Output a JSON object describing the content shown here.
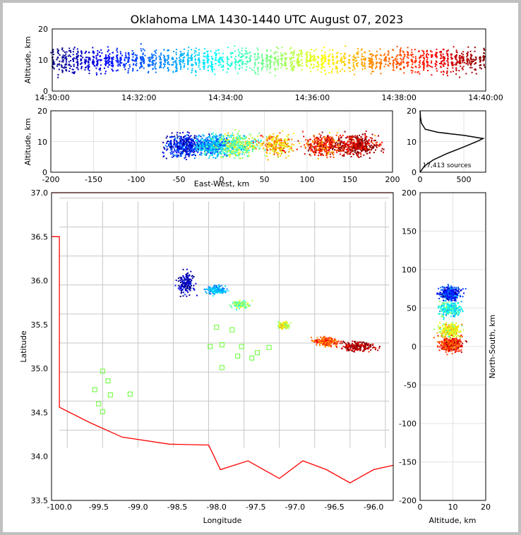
{
  "title": "Oklahoma LMA 1430-1440 UTC August 07, 2023",
  "time_panel": {
    "ylabel": "Altitude, km",
    "yticks": [
      "0",
      "10",
      "20"
    ],
    "xticks": [
      "14:30:00",
      "14:32:00",
      "14:34:00",
      "14:36:00",
      "14:38:00",
      "14:40:00"
    ]
  },
  "ew_panel": {
    "xlabel": "East-West, km",
    "ylabel": "Altitude, km",
    "xticks": [
      "-200",
      "-150",
      "-100",
      "-50",
      "0",
      "50",
      "100",
      "150",
      "200"
    ],
    "yticks": [
      "0",
      "10",
      "20"
    ]
  },
  "hist_panel": {
    "annotation": "17,413 sources",
    "xticks": [
      "0",
      "500"
    ],
    "yticks": [
      "0",
      "10",
      "20"
    ]
  },
  "map_panel": {
    "xlabel": "Longitude",
    "ylabel": "Latitude",
    "xticks": [
      "-100.0",
      "-99.5",
      "-99.0",
      "-98.5",
      "-98.0",
      "-97.5",
      "-97.0",
      "-96.5",
      "-96.0"
    ],
    "yticks": [
      "33.5",
      "34.0",
      "34.5",
      "35.0",
      "35.5",
      "36.0",
      "36.5",
      "37.0"
    ]
  },
  "ns_panel": {
    "xlabel": "Altitude, km",
    "ylabel": "North-South, km",
    "xticks": [
      "0",
      "10",
      "20"
    ],
    "yticks": [
      "-200",
      "-150",
      "-100",
      "-50",
      "0",
      "50",
      "100",
      "150",
      "200"
    ]
  },
  "colors": {
    "border": "#ff0000",
    "counties": "#bdbdbd",
    "stations": "#66ff33"
  },
  "chart_data": [
    {
      "type": "scatter",
      "name": "altitude-vs-time",
      "x_range": [
        "14:30:00",
        "14:40:00"
      ],
      "ylim": [
        0,
        20
      ],
      "colormap": "jet (time)",
      "altitude_band_km": [
        2,
        18
      ]
    },
    {
      "type": "scatter",
      "name": "altitude-vs-east-west",
      "xlim": [
        -200,
        200
      ],
      "ylim": [
        0,
        20
      ],
      "x_extent_km": [
        -60,
        200
      ]
    },
    {
      "type": "area",
      "name": "altitude-histogram",
      "xlim": [
        0,
        750
      ],
      "ylim": [
        0,
        20
      ],
      "total_sources": 17413,
      "peak_altitude_km": 11,
      "peak_count": 720,
      "profile": [
        [
          0,
          0
        ],
        [
          50,
          2
        ],
        [
          150,
          4
        ],
        [
          300,
          6
        ],
        [
          480,
          8
        ],
        [
          650,
          10
        ],
        [
          720,
          11
        ],
        [
          500,
          12
        ],
        [
          200,
          13
        ],
        [
          60,
          14
        ],
        [
          15,
          16
        ],
        [
          5,
          18
        ],
        [
          0,
          20
        ]
      ]
    },
    {
      "type": "scatter",
      "name": "plan-view-map",
      "xlim": [
        -100.1,
        -95.75
      ],
      "ylim": [
        33.5,
        37.0
      ],
      "stations": [
        [
          -99.45,
          34.97
        ],
        [
          -99.55,
          34.76
        ],
        [
          -99.38,
          34.86
        ],
        [
          -99.35,
          34.7
        ],
        [
          -99.5,
          34.6
        ],
        [
          -99.45,
          34.51
        ],
        [
          -99.1,
          34.71
        ],
        [
          -98.0,
          35.47
        ],
        [
          -98.08,
          35.25
        ],
        [
          -97.93,
          35.27
        ],
        [
          -97.93,
          35.01
        ],
        [
          -97.8,
          35.44
        ],
        [
          -97.68,
          35.25
        ],
        [
          -97.73,
          35.14
        ],
        [
          -97.55,
          35.12
        ],
        [
          -97.48,
          35.18
        ],
        [
          -97.33,
          35.24
        ]
      ]
    },
    {
      "type": "scatter",
      "name": "north-south-vs-altitude",
      "xlim": [
        0,
        20
      ],
      "ylim": [
        -200,
        200
      ]
    }
  ]
}
